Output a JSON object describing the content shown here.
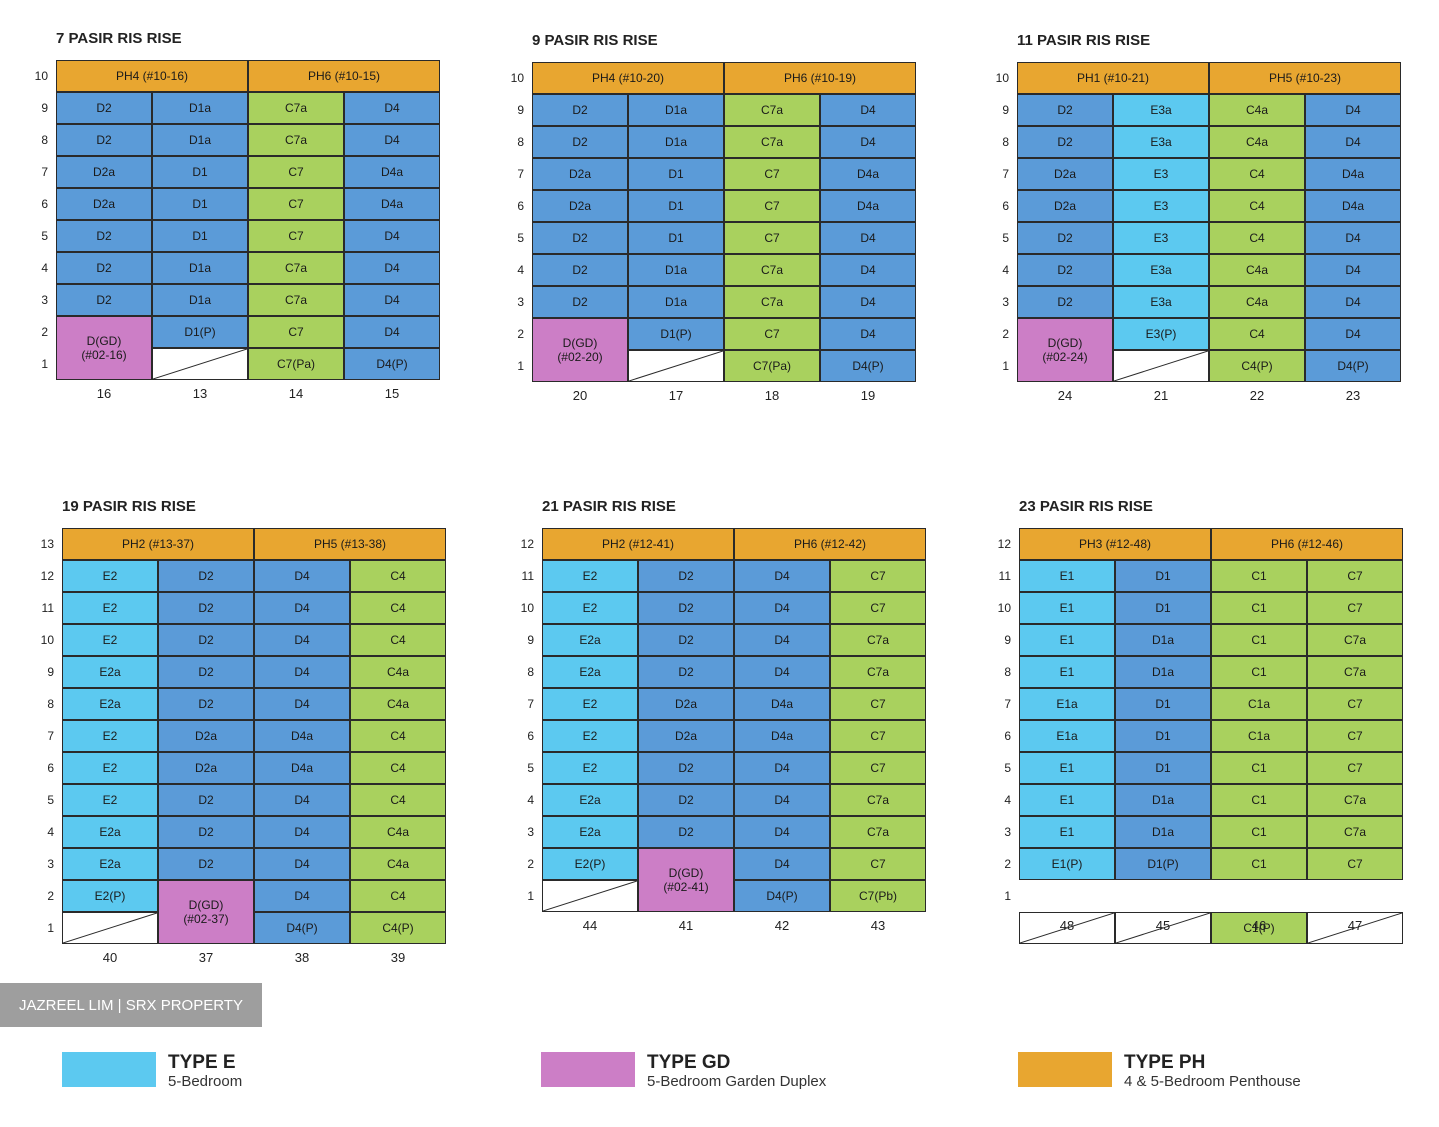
{
  "colors": {
    "D": "#5b9bd8",
    "E": "#5cc9f0",
    "C": "#a9d15e",
    "GD": "#cc7ec6",
    "PH": "#e8a630"
  },
  "badge": "JAZREEL LIM | SRX PROPERTY",
  "legend": [
    {
      "type": "E",
      "title": "TYPE E",
      "subtitle": "5-Bedroom"
    },
    {
      "type": "GD",
      "title": "TYPE GD",
      "subtitle": "5-Bedroom Garden Duplex"
    },
    {
      "type": "PH",
      "title": "TYPE PH",
      "subtitle": "4 & 5-Bedroom Penthouse"
    }
  ],
  "blocks": [
    {
      "title": "7 PASIR RIS RISE",
      "units": [
        "16",
        "13",
        "14",
        "15"
      ],
      "floors": [
        "10",
        "9",
        "8",
        "7",
        "6",
        "5",
        "4",
        "3",
        "2",
        "1"
      ],
      "penthouses": [
        "PH4 (#10-16)",
        "PH6 (#10-15)"
      ],
      "rows": [
        [
          "D2",
          "D1a",
          "C7a",
          "D4"
        ],
        [
          "D2",
          "D1a",
          "C7a",
          "D4"
        ],
        [
          "D2a",
          "D1",
          "C7",
          "D4a"
        ],
        [
          "D2a",
          "D1",
          "C7",
          "D4a"
        ],
        [
          "D2",
          "D1",
          "C7",
          "D4"
        ],
        [
          "D2",
          "D1a",
          "C7a",
          "D4"
        ],
        [
          "D2",
          "D1a",
          "C7a",
          "D4"
        ]
      ],
      "lower": {
        "gd_col": 0,
        "gd_label": "D(GD)\n(#02-16)",
        "upper": [
          "",
          "D1(P)",
          "C7",
          "D4"
        ],
        "ground": [
          "",
          "",
          "C7(Pa)",
          "D4(P)"
        ],
        "voids": [
          1
        ]
      }
    },
    {
      "title": "9 PASIR RIS RISE",
      "units": [
        "20",
        "17",
        "18",
        "19"
      ],
      "floors": [
        "10",
        "9",
        "8",
        "7",
        "6",
        "5",
        "4",
        "3",
        "2",
        "1"
      ],
      "penthouses": [
        "PH4 (#10-20)",
        "PH6 (#10-19)"
      ],
      "rows": [
        [
          "D2",
          "D1a",
          "C7a",
          "D4"
        ],
        [
          "D2",
          "D1a",
          "C7a",
          "D4"
        ],
        [
          "D2a",
          "D1",
          "C7",
          "D4a"
        ],
        [
          "D2a",
          "D1",
          "C7",
          "D4a"
        ],
        [
          "D2",
          "D1",
          "C7",
          "D4"
        ],
        [
          "D2",
          "D1a",
          "C7a",
          "D4"
        ],
        [
          "D2",
          "D1a",
          "C7a",
          "D4"
        ]
      ],
      "lower": {
        "gd_col": 0,
        "gd_label": "D(GD)\n(#02-20)",
        "upper": [
          "",
          "D1(P)",
          "C7",
          "D4"
        ],
        "ground": [
          "",
          "",
          "C7(Pa)",
          "D4(P)"
        ],
        "voids": [
          1
        ]
      }
    },
    {
      "title": "11 PASIR RIS RISE",
      "units": [
        "24",
        "21",
        "22",
        "23"
      ],
      "floors": [
        "10",
        "9",
        "8",
        "7",
        "6",
        "5",
        "4",
        "3",
        "2",
        "1"
      ],
      "penthouses": [
        "PH1 (#10-21)",
        "PH5 (#10-23)"
      ],
      "rows": [
        [
          "D2",
          "E3a",
          "C4a",
          "D4"
        ],
        [
          "D2",
          "E3a",
          "C4a",
          "D4"
        ],
        [
          "D2a",
          "E3",
          "C4",
          "D4a"
        ],
        [
          "D2a",
          "E3",
          "C4",
          "D4a"
        ],
        [
          "D2",
          "E3",
          "C4",
          "D4"
        ],
        [
          "D2",
          "E3a",
          "C4a",
          "D4"
        ],
        [
          "D2",
          "E3a",
          "C4a",
          "D4"
        ]
      ],
      "lower": {
        "gd_col": 0,
        "gd_label": "D(GD)\n(#02-24)",
        "upper": [
          "",
          "E3(P)",
          "C4",
          "D4"
        ],
        "ground": [
          "",
          "",
          "C4(P)",
          "D4(P)"
        ],
        "voids": [
          1
        ]
      }
    },
    {
      "title": "19 PASIR RIS RISE",
      "units": [
        "40",
        "37",
        "38",
        "39"
      ],
      "floors": [
        "13",
        "12",
        "11",
        "10",
        "9",
        "8",
        "7",
        "6",
        "5",
        "4",
        "3",
        "2",
        "1"
      ],
      "penthouses": [
        "PH2 (#13-37)",
        "PH5 (#13-38)"
      ],
      "rows": [
        [
          "E2",
          "D2",
          "D4",
          "C4"
        ],
        [
          "E2",
          "D2",
          "D4",
          "C4"
        ],
        [
          "E2",
          "D2",
          "D4",
          "C4"
        ],
        [
          "E2a",
          "D2",
          "D4",
          "C4a"
        ],
        [
          "E2a",
          "D2",
          "D4",
          "C4a"
        ],
        [
          "E2",
          "D2a",
          "D4a",
          "C4"
        ],
        [
          "E2",
          "D2a",
          "D4a",
          "C4"
        ],
        [
          "E2",
          "D2",
          "D4",
          "C4"
        ],
        [
          "E2a",
          "D2",
          "D4",
          "C4a"
        ],
        [
          "E2a",
          "D2",
          "D4",
          "C4a"
        ]
      ],
      "lower": {
        "gd_col": 1,
        "gd_label": "D(GD)\n(#02-37)",
        "upper": [
          "E2(P)",
          "",
          "D4",
          "C4"
        ],
        "ground": [
          "",
          "",
          "D4(P)",
          "C4(P)"
        ],
        "voids": [
          0
        ]
      }
    },
    {
      "title": "21 PASIR RIS RISE",
      "units": [
        "44",
        "41",
        "42",
        "43"
      ],
      "floors": [
        "12",
        "11",
        "10",
        "9",
        "8",
        "7",
        "6",
        "5",
        "4",
        "3",
        "2",
        "1"
      ],
      "penthouses": [
        "PH2 (#12-41)",
        "PH6 (#12-42)"
      ],
      "rows": [
        [
          "E2",
          "D2",
          "D4",
          "C7"
        ],
        [
          "E2",
          "D2",
          "D4",
          "C7"
        ],
        [
          "E2a",
          "D2",
          "D4",
          "C7a"
        ],
        [
          "E2a",
          "D2",
          "D4",
          "C7a"
        ],
        [
          "E2",
          "D2a",
          "D4a",
          "C7"
        ],
        [
          "E2",
          "D2a",
          "D4a",
          "C7"
        ],
        [
          "E2",
          "D2",
          "D4",
          "C7"
        ],
        [
          "E2a",
          "D2",
          "D4",
          "C7a"
        ],
        [
          "E2a",
          "D2",
          "D4",
          "C7a"
        ]
      ],
      "lower": {
        "gd_col": 1,
        "gd_label": "D(GD)\n(#02-41)",
        "upper": [
          "E2(P)",
          "",
          "D4",
          "C7"
        ],
        "ground": [
          "",
          "",
          "D4(P)",
          "C7(Pb)"
        ],
        "voids": [
          0
        ]
      }
    },
    {
      "title": "23 PASIR RIS RISE",
      "units": [
        "48",
        "45",
        "46",
        "47"
      ],
      "floors": [
        "12",
        "11",
        "10",
        "9",
        "8",
        "7",
        "6",
        "5",
        "4",
        "3",
        "2",
        "1"
      ],
      "penthouses": [
        "PH3 (#12-48)",
        "PH6 (#12-46)"
      ],
      "rows": [
        [
          "E1",
          "D1",
          "C1",
          "C7"
        ],
        [
          "E1",
          "D1",
          "C1",
          "C7"
        ],
        [
          "E1",
          "D1a",
          "C1",
          "C7a"
        ],
        [
          "E1",
          "D1a",
          "C1",
          "C7a"
        ],
        [
          "E1a",
          "D1",
          "C1a",
          "C7"
        ],
        [
          "E1a",
          "D1",
          "C1a",
          "C7"
        ],
        [
          "E1",
          "D1",
          "C1",
          "C7"
        ],
        [
          "E1",
          "D1a",
          "C1",
          "C7a"
        ],
        [
          "E1",
          "D1a",
          "C1",
          "C7a"
        ],
        [
          "E1(P)",
          "D1(P)",
          "C1",
          "C7"
        ]
      ],
      "lower": {
        "gd_col": -1,
        "gd_label": "",
        "upper": [],
        "ground": [
          "",
          "",
          "C1(P)",
          ""
        ],
        "voids": [
          0,
          1,
          3
        ]
      }
    }
  ]
}
